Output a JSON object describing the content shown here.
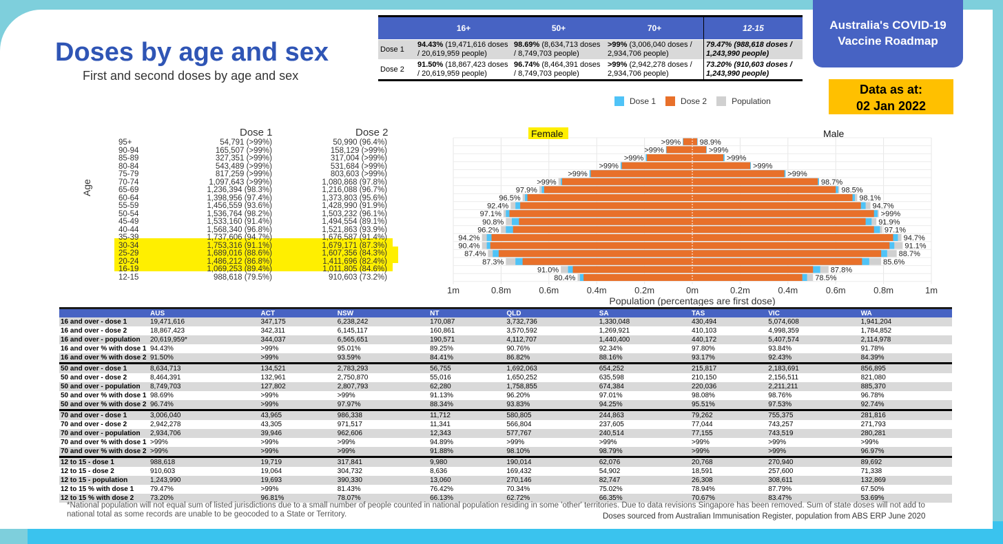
{
  "title": "Doses by age and sex",
  "subtitle": "First and second doses by age and sex",
  "badge": {
    "line1": "Australia's COVID-19",
    "line2": "Vaccine Roadmap"
  },
  "date": {
    "line1": "Data as at:",
    "line2": "02 Jan 2022"
  },
  "summary": {
    "headers": [
      "",
      "16+",
      "50+",
      "70+",
      "12-15"
    ],
    "rows": [
      {
        "label": "Dose 1",
        "cells": [
          {
            "b": "94.43%",
            "t": " (19,471,616 doses / 20,619,959 people)"
          },
          {
            "b": "98.69%",
            "t": " (8,634,713 doses / 8,749,703 people)"
          },
          {
            "b": ">99%",
            "t": " (3,006,040 doses / 2,934,706 people)"
          },
          {
            "b": "79.47% (988,618 doses / 1,243,990 people)",
            "t": ""
          }
        ]
      },
      {
        "label": "Dose 2",
        "cells": [
          {
            "b": "91.50%",
            "t": " (18,867,423 doses / 20,619,959 people)"
          },
          {
            "b": "96.74%",
            "t": " (8,464,391 doses / 8,749,703 people)"
          },
          {
            "b": ">99%",
            "t": " (2,942,278 doses / 2,934,706 people)"
          },
          {
            "b": "73.20% (910,603 doses / 1,243,990 people)",
            "t": ""
          }
        ]
      }
    ]
  },
  "legend": [
    {
      "label": "Dose 1",
      "color": "#4fc3f7"
    },
    {
      "label": "Dose 2",
      "color": "#e8702a"
    },
    {
      "label": "Population",
      "color": "#d0d0d0"
    }
  ],
  "doses_table": {
    "header_dose1": "Dose 1",
    "header_dose2": "Dose 2",
    "axis_label": "Age",
    "rows": [
      {
        "age": "95+",
        "d1": "54,791 (>99%)",
        "d2": "50,990 (96.4%)"
      },
      {
        "age": "90-94",
        "d1": "165,507 (>99%)",
        "d2": "158,129 (>99%)"
      },
      {
        "age": "85-89",
        "d1": "327,351 (>99%)",
        "d2": "317,004 (>99%)"
      },
      {
        "age": "80-84",
        "d1": "543,489 (>99%)",
        "d2": "531,684 (>99%)"
      },
      {
        "age": "75-79",
        "d1": "817,259 (>99%)",
        "d2": "803,603 (>99%)"
      },
      {
        "age": "70-74",
        "d1": "1,097,643 (>99%)",
        "d2": "1,080,868 (97.8%)"
      },
      {
        "age": "65-69",
        "d1": "1,236,394 (98.3%)",
        "d2": "1,216,088 (96.7%)"
      },
      {
        "age": "60-64",
        "d1": "1,398,956 (97.4%)",
        "d2": "1,373,803 (95.6%)"
      },
      {
        "age": "55-59",
        "d1": "1,456,559 (93.6%)",
        "d2": "1,428,990 (91.9%)"
      },
      {
        "age": "50-54",
        "d1": "1,536,764 (98.2%)",
        "d2": "1,503,232 (96.1%)"
      },
      {
        "age": "45-49",
        "d1": "1,533,160 (91.4%)",
        "d2": "1,494,554 (89.1%)"
      },
      {
        "age": "40-44",
        "d1": "1,568,340 (96.8%)",
        "d2": "1,521,863 (93.9%)"
      },
      {
        "age": "35-39",
        "d1": "1,737,606 (94.7%)",
        "d2": "1,676,587 (91.4%)"
      },
      {
        "age": "30-34",
        "d1": "1,753,316 (91.1%)",
        "d2": "1,679,171 (87.3%)"
      },
      {
        "age": "25-29",
        "d1": "1,689,016 (88.6%)",
        "d2": "1,607,356 (84.3%)"
      },
      {
        "age": "20-24",
        "d1": "1,486,212 (86.8%)",
        "d2": "1,411,696 (82.4%)"
      },
      {
        "age": "16-19",
        "d1": "1,069,253 (89.4%)",
        "d2": "1,011,805 (84.6%)"
      },
      {
        "age": "12-15",
        "d1": "988,618 (79.5%)",
        "d2": "910,603 (73.2%)"
      }
    ]
  },
  "chart_data": {
    "type": "bar",
    "orientation": "horizontal-population-pyramid",
    "labels": {
      "female": "Female",
      "male": "Male"
    },
    "xlabel": "Population (percentages are first dose)",
    "xlim": [
      -1000000,
      1000000
    ],
    "tick_labels": [
      "1m",
      "0.8m",
      "0.6m",
      "0.4m",
      "0.2m",
      "0m",
      "0.2m",
      "0.4m",
      "0.6m",
      "0.8m",
      "1m"
    ],
    "tick_values": [
      -1000000,
      -800000,
      -600000,
      -400000,
      -200000,
      0,
      200000,
      400000,
      600000,
      800000,
      1000000
    ],
    "categories": [
      "95+",
      "90-94",
      "85-89",
      "80-84",
      "75-79",
      "70-74",
      "65-69",
      "60-64",
      "55-59",
      "50-54",
      "45-49",
      "40-44",
      "35-39",
      "30-34",
      "25-29",
      "20-24",
      "16-19",
      "12-15"
    ],
    "series": [
      {
        "name": "Population",
        "female": [
          40000,
          110000,
          195000,
          300000,
          430000,
          560000,
          640000,
          710000,
          760000,
          790000,
          780000,
          800000,
          880000,
          880000,
          855000,
          780000,
          550000,
          480000
        ],
        "male": [
          22000,
          60000,
          135000,
          245000,
          390000,
          530000,
          615000,
          690000,
          745000,
          780000,
          770000,
          795000,
          875000,
          880000,
          855000,
          790000,
          570000,
          505000
        ]
      },
      {
        "name": "Dose 1",
        "female": [
          40000,
          110000,
          195000,
          300000,
          430000,
          550000,
          630000,
          700000,
          740000,
          780000,
          755000,
          780000,
          860000,
          860000,
          835000,
          740000,
          520000,
          470000
        ],
        "male": [
          22000,
          60000,
          135000,
          245000,
          390000,
          530000,
          610000,
          680000,
          725000,
          775000,
          750000,
          785000,
          860000,
          845000,
          815000,
          740000,
          535000,
          480000
        ]
      },
      {
        "name": "Dose 2",
        "female": [
          38000,
          108000,
          190000,
          295000,
          425000,
          545000,
          620000,
          690000,
          720000,
          765000,
          725000,
          750000,
          840000,
          845000,
          810000,
          710000,
          500000,
          455000
        ],
        "male": [
          20000,
          58000,
          130000,
          242000,
          385000,
          525000,
          600000,
          670000,
          705000,
          760000,
          725000,
          760000,
          840000,
          825000,
          790000,
          710000,
          505000,
          460000
        ]
      }
    ],
    "female_pct": [
      ">99%",
      ">99%",
      ">99%",
      ">99%",
      ">99%",
      ">99%",
      "97.9%",
      "96.5%",
      "92.4%",
      "97.1%",
      "90.8%",
      "96.2%",
      "94.2%",
      "90.4%",
      "87.4%",
      "87.3%",
      "91.0%",
      "80.4%"
    ],
    "male_pct": [
      "98.9%",
      ">99%",
      ">99%",
      ">99%",
      ">99%",
      "98.7%",
      "98.5%",
      "98.1%",
      "94.7%",
      ">99%",
      "91.9%",
      "97.1%",
      "94.7%",
      "91.1%",
      "88.7%",
      "85.6%",
      "87.8%",
      "78.5%"
    ]
  },
  "main_table": {
    "columns": [
      "",
      "AUS",
      "ACT",
      "NSW",
      "NT",
      "QLD",
      "SA",
      "TAS",
      "VIC",
      "WA"
    ],
    "groups": [
      [
        [
          "16 and over - dose 1",
          "19,471,616",
          "347,175",
          "6,238,242",
          "170,087",
          "3,732,736",
          "1,330,048",
          "430,494",
          "5,074,608",
          "1,941,204"
        ],
        [
          "16 and over - dose 2",
          "18,867,423",
          "342,311",
          "6,145,117",
          "160,861",
          "3,570,592",
          "1,269,921",
          "410,103",
          "4,998,359",
          "1,784,852"
        ],
        [
          "16 and over - population",
          "20,619,959*",
          "344,037",
          "6,565,651",
          "190,571",
          "4,112,707",
          "1,440,400",
          "440,172",
          "5,407,574",
          "2,114,978"
        ],
        [
          "16 and over % with dose 1",
          "94.43%",
          ">99%",
          "95.01%",
          "89.25%",
          "90.76%",
          "92.34%",
          "97.80%",
          "93.84%",
          "91.78%"
        ],
        [
          "16 and over % with dose 2",
          "91.50%",
          ">99%",
          "93.59%",
          "84.41%",
          "86.82%",
          "88.16%",
          "93.17%",
          "92.43%",
          "84.39%"
        ]
      ],
      [
        [
          "50 and over - dose 1",
          "8,634,713",
          "134,521",
          "2,783,293",
          "56,755",
          "1,692,063",
          "654,252",
          "215,817",
          "2,183,691",
          "856,895"
        ],
        [
          "50 and over - dose 2",
          "8,464,391",
          "132,961",
          "2,750,870",
          "55,016",
          "1,650,252",
          "635,598",
          "210,150",
          "2,156,511",
          "821,080"
        ],
        [
          "50 and over - population",
          "8,749,703",
          "127,802",
          "2,807,793",
          "62,280",
          "1,758,855",
          "674,384",
          "220,036",
          "2,211,211",
          "885,370"
        ],
        [
          "50 and over % with dose 1",
          "98.69%",
          ">99%",
          ">99%",
          "91.13%",
          "96.20%",
          "97.01%",
          "98.08%",
          "98.76%",
          "96.78%"
        ],
        [
          "50 and over % with dose 2",
          "96.74%",
          ">99%",
          "97.97%",
          "88.34%",
          "93.83%",
          "94.25%",
          "95.51%",
          "97.53%",
          "92.74%"
        ]
      ],
      [
        [
          "70 and over - dose 1",
          "3,006,040",
          "43,965",
          "986,338",
          "11,712",
          "580,805",
          "244,863",
          "79,262",
          "755,375",
          "281,816"
        ],
        [
          "70 and over - dose 2",
          "2,942,278",
          "43,305",
          "971,517",
          "11,341",
          "566,804",
          "237,605",
          "77,044",
          "743,257",
          "271,793"
        ],
        [
          "70 and over - population",
          "2,934,706",
          "39,946",
          "962,606",
          "12,343",
          "577,767",
          "240,514",
          "77,155",
          "743,519",
          "280,281"
        ],
        [
          "70 and over % with dose 1",
          ">99%",
          ">99%",
          ">99%",
          "94.89%",
          ">99%",
          ">99%",
          ">99%",
          ">99%",
          ">99%"
        ],
        [
          "70 and over % with dose 2",
          ">99%",
          ">99%",
          ">99%",
          "91.88%",
          "98.10%",
          "98.79%",
          ">99%",
          ">99%",
          "96.97%"
        ]
      ],
      [
        [
          "12 to 15 - dose 1",
          "988,618",
          "19,719",
          "317,841",
          "9,980",
          "190,014",
          "62,076",
          "20,768",
          "270,940",
          "89,692"
        ],
        [
          "12 to 15 - dose 2",
          "910,603",
          "19,064",
          "304,732",
          "8,636",
          "169,432",
          "54,902",
          "18,591",
          "257,600",
          "71,338"
        ],
        [
          "12 to 15 - population",
          "1,243,990",
          "19,693",
          "390,330",
          "13,060",
          "270,146",
          "82,747",
          "26,308",
          "308,611",
          "132,869"
        ],
        [
          "12 to 15 % with dose 1",
          "79.47%",
          ">99%",
          "81.43%",
          "76.42%",
          "70.34%",
          "75.02%",
          "78.94%",
          "87.79%",
          "67.50%"
        ],
        [
          "12 to 15 % with dose 2",
          "73.20%",
          "96.81%",
          "78.07%",
          "66.13%",
          "62.72%",
          "66.35%",
          "70.67%",
          "83.47%",
          "53.69%"
        ]
      ]
    ]
  },
  "footnote": "*National population will not equal sum of listed jurisdictions due to a small number of people counted in national population residing in some 'other' territories. Due to data revisions Singapore has been removed. Sum of state doses will not add to national total as some records are unable to be geocoded to a State or Territory.",
  "source": "Doses sourced from Australian Immunisation Register, population from ABS ERP June 2020"
}
